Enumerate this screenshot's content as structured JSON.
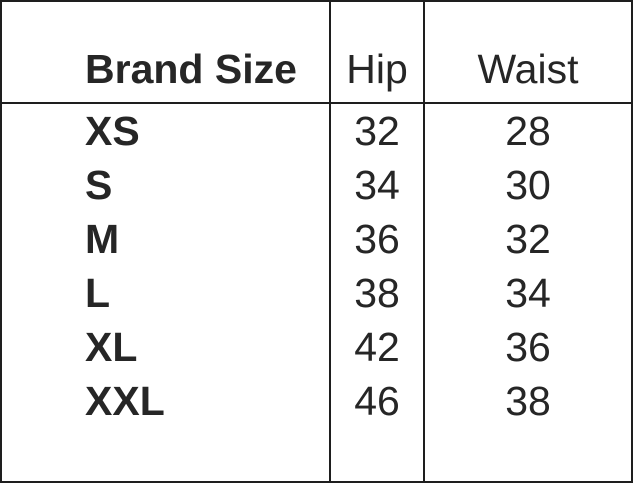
{
  "colors": {
    "background": "#ffffff",
    "border": "#1e1e1e",
    "text": "#262626"
  },
  "table": {
    "headers": {
      "brand_size": "Brand Size",
      "hip": "Hip",
      "waist": "Waist"
    }
  },
  "chart_data": {
    "type": "table",
    "columns": [
      "Brand Size",
      "Hip",
      "Waist"
    ],
    "rows": [
      [
        "XS",
        32,
        28
      ],
      [
        "S",
        34,
        30
      ],
      [
        "M",
        36,
        32
      ],
      [
        "L",
        38,
        34
      ],
      [
        "XL",
        42,
        36
      ],
      [
        "XXL",
        46,
        38
      ]
    ]
  }
}
